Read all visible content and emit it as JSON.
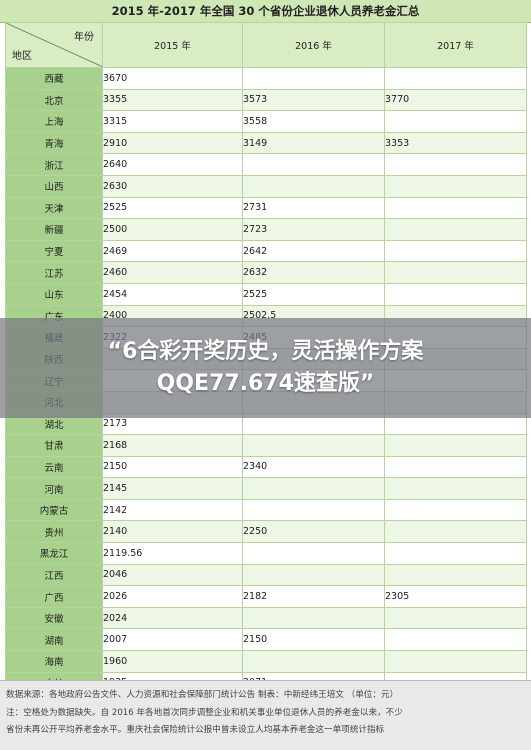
{
  "title": "2015 年-2017 年全国 30 个省份企业退休人员养老金汇总",
  "header": {
    "corner_year": "年份",
    "corner_region": "地区",
    "years": [
      "2015 年",
      "2016 年",
      "2017 年"
    ]
  },
  "rows": [
    {
      "region": "西藏",
      "y2015": "3670",
      "y2016": "",
      "y2017": ""
    },
    {
      "region": "北京",
      "y2015": "3355",
      "y2016": "3573",
      "y2017": "3770"
    },
    {
      "region": "上海",
      "y2015": "3315",
      "y2016": "3558",
      "y2017": ""
    },
    {
      "region": "青海",
      "y2015": "2910",
      "y2016": "3149",
      "y2017": "3353"
    },
    {
      "region": "浙江",
      "y2015": "2640",
      "y2016": "",
      "y2017": ""
    },
    {
      "region": "山西",
      "y2015": "2630",
      "y2016": "",
      "y2017": ""
    },
    {
      "region": "天津",
      "y2015": "2525",
      "y2016": "2731",
      "y2017": ""
    },
    {
      "region": "新疆",
      "y2015": "2500",
      "y2016": "2723",
      "y2017": ""
    },
    {
      "region": "宁夏",
      "y2015": "2469",
      "y2016": "2642",
      "y2017": ""
    },
    {
      "region": "江苏",
      "y2015": "2460",
      "y2016": "2632",
      "y2017": ""
    },
    {
      "region": "山东",
      "y2015": "2454",
      "y2016": "2525",
      "y2017": ""
    },
    {
      "region": "广东",
      "y2015": "2400",
      "y2016": "2502.5",
      "y2017": ""
    },
    {
      "region": "福建",
      "y2015": "2322",
      "y2016": "2485",
      "y2017": ""
    },
    {
      "region": "陕西",
      "y2015": "",
      "y2016": "",
      "y2017": ""
    },
    {
      "region": "辽宁",
      "y2015": "",
      "y2016": "",
      "y2017": ""
    },
    {
      "region": "河北",
      "y2015": "",
      "y2016": "",
      "y2017": ""
    },
    {
      "region": "湖北",
      "y2015": "2173",
      "y2016": "",
      "y2017": ""
    },
    {
      "region": "甘肃",
      "y2015": "2168",
      "y2016": "",
      "y2017": ""
    },
    {
      "region": "云南",
      "y2015": "2150",
      "y2016": "2340",
      "y2017": ""
    },
    {
      "region": "河南",
      "y2015": "2145",
      "y2016": "",
      "y2017": ""
    },
    {
      "region": "内蒙古",
      "y2015": "2142",
      "y2016": "",
      "y2017": ""
    },
    {
      "region": "贵州",
      "y2015": "2140",
      "y2016": "2250",
      "y2017": ""
    },
    {
      "region": "黑龙江",
      "y2015": "2119.56",
      "y2016": "",
      "y2017": ""
    },
    {
      "region": "江西",
      "y2015": "2046",
      "y2016": "",
      "y2017": ""
    },
    {
      "region": "广西",
      "y2015": "2026",
      "y2016": "2182",
      "y2017": "2305"
    },
    {
      "region": "安徽",
      "y2015": "2024",
      "y2016": "",
      "y2017": ""
    },
    {
      "region": "湖南",
      "y2015": "2007",
      "y2016": "2150",
      "y2017": ""
    },
    {
      "region": "海南",
      "y2015": "1960",
      "y2016": "",
      "y2017": ""
    },
    {
      "region": "吉林",
      "y2015": "1935",
      "y2016": "2071",
      "y2017": ""
    },
    {
      "region": "四川",
      "y2015": "1790",
      "y2016": "1886",
      "y2017": ""
    }
  ],
  "overlay": {
    "line1": "“6合彩开奖历史，灵活操作方案",
    "line2": "QQE77.674速查版”"
  },
  "footer": {
    "line1": "数据来源：各地政府公告文件、人力资源和社会保障部门统计公告  制表：中新经纬王培文 （单位：元）",
    "line2": "注：空格处为数据缺失。自 2016 年各地首次同步调整企业和机关事业单位退休人员的养老金以来，不少",
    "line3": "省份未再公开平均养老金水平。重庆社会保险统计公报中曾未设立人均基本养老金这一单项统计指标"
  }
}
